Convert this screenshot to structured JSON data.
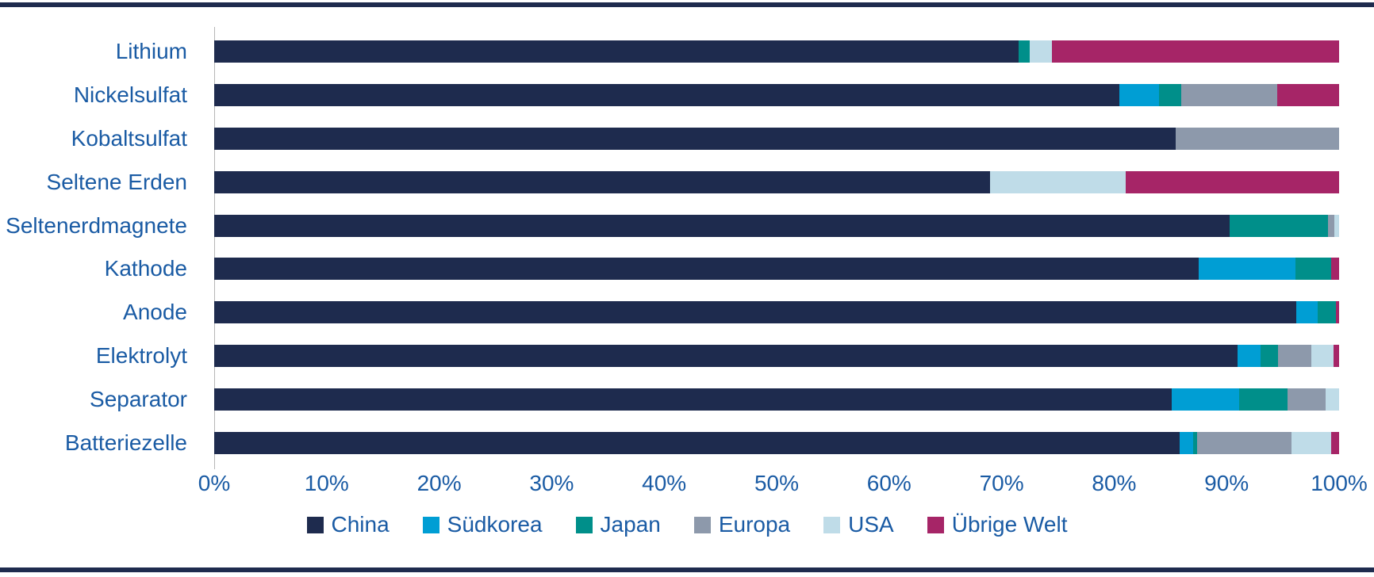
{
  "styles": {
    "rule_navy": "#1e2b4e",
    "label_blue": "#1a5ba4",
    "axis_line": "#b6b6b6",
    "background": "#ffffff"
  },
  "chart_data": {
    "type": "bar",
    "orientation": "horizontal",
    "stacked": true,
    "unit": "%",
    "title": "",
    "xlabel": "",
    "ylabel": "",
    "xlim": [
      0,
      100
    ],
    "grid": false,
    "legend_position": "bottom",
    "categories": [
      "Lithium",
      "Nickelsulfat",
      "Kobaltsulfat",
      "Seltene Erden",
      "Seltenerdmagnete",
      "Kathode",
      "Anode",
      "Elektrolyt",
      "Separator",
      "Batteriezelle"
    ],
    "series": [
      {
        "name": "China",
        "color": "#1e2b4e",
        "values": [
          71.5,
          80.5,
          85.5,
          69.0,
          90.3,
          87.5,
          96.2,
          91.0,
          85.1,
          85.8
        ]
      },
      {
        "name": "Südkorea",
        "color": "#009ed4",
        "values": [
          0,
          3.5,
          0,
          0,
          0,
          8.6,
          1.9,
          2.0,
          6.0,
          1.2
        ]
      },
      {
        "name": "Japan",
        "color": "#008f8a",
        "values": [
          1.0,
          2.0,
          0,
          0,
          8.7,
          3.2,
          1.6,
          1.6,
          4.3,
          0.4
        ]
      },
      {
        "name": "Europa",
        "color": "#8d99ab",
        "values": [
          0,
          8.5,
          14.5,
          0,
          0.6,
          0,
          0,
          2.9,
          3.4,
          8.4
        ]
      },
      {
        "name": "USA",
        "color": "#bfdce8",
        "values": [
          2.0,
          0,
          0,
          12.0,
          0.4,
          0,
          0,
          2.0,
          1.2,
          3.5
        ]
      },
      {
        "name": "Übrige Welt",
        "color": "#a62567",
        "values": [
          25.5,
          5.5,
          0,
          19.0,
          0,
          0.7,
          0.3,
          0.5,
          0,
          0.7
        ]
      }
    ],
    "x_ticks": [
      "0%",
      "10%",
      "20%",
      "30%",
      "40%",
      "50%",
      "60%",
      "70%",
      "80%",
      "90%",
      "100%"
    ]
  }
}
